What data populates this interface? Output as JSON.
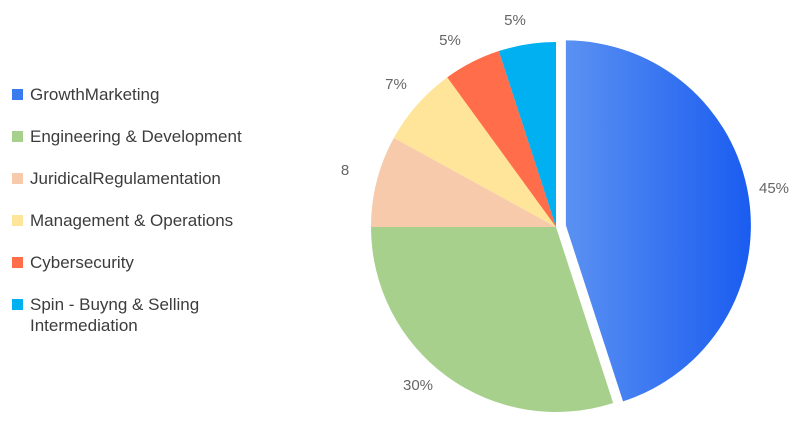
{
  "chart_data": {
    "type": "pie",
    "title": "",
    "legend_position": "left",
    "slices": [
      {
        "name": "GrowthMarketing",
        "value": 45,
        "label": "45%",
        "color": "#3b7bf0",
        "exploded": true
      },
      {
        "name": "Engineering &  Development",
        "value": 30,
        "label": "30%",
        "color": "#a8d08d",
        "exploded": false
      },
      {
        "name": "JuridicalRegulamentation",
        "value": 8,
        "label": "8",
        "color": "#f7caac",
        "exploded": false
      },
      {
        "name": "Management & Operations",
        "value": 7,
        "label": "7%",
        "color": "#ffe599",
        "exploded": false
      },
      {
        "name": "Cybersecurity",
        "value": 5,
        "label": "5%",
        "color": "#ff6d4a",
        "exploded": false
      },
      {
        "name": "Spin - Buyng & Selling\nIntermediation",
        "value": 5,
        "label": "5%",
        "color": "#00b0f0",
        "exploded": false
      }
    ]
  }
}
